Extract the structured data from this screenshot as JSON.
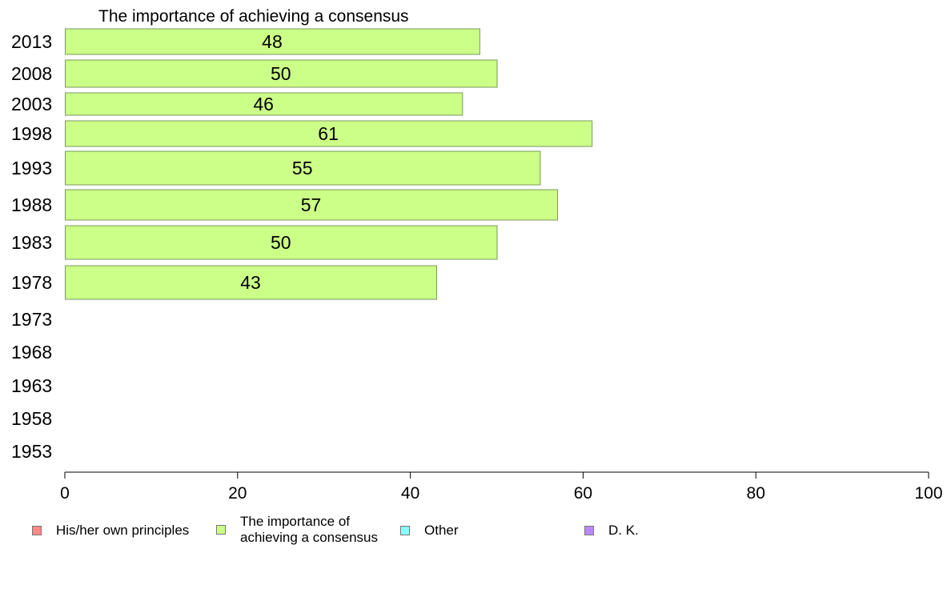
{
  "chart_data": {
    "type": "bar",
    "orientation": "horizontal",
    "title": "The importance of achieving a consensus",
    "categories": [
      "2013",
      "2008",
      "2003",
      "1998",
      "1993",
      "1988",
      "1983",
      "1978",
      "1973",
      "1968",
      "1963",
      "1958",
      "1953"
    ],
    "series": [
      {
        "name": "The importance of achieving a consensus",
        "color": "#ccff88",
        "values": [
          48,
          50,
          46,
          61,
          55,
          57,
          50,
          43,
          null,
          null,
          null,
          null,
          null
        ],
        "labels": [
          "48",
          "50",
          "46",
          "61",
          "55",
          "57",
          "50",
          "43",
          "",
          "",
          "",
          "",
          ""
        ]
      }
    ],
    "xlim": [
      0,
      100
    ],
    "xticks": [
      "0",
      "20",
      "40",
      "60",
      "80",
      "100"
    ],
    "grid": false,
    "legend_position": "bottom"
  },
  "legend": [
    {
      "label": "His/her own principles",
      "color": "#ff8888"
    },
    {
      "label": "The importance of\nachieving a consensus",
      "color": "#ccff88"
    },
    {
      "label": "Other",
      "color": "#88ffff"
    },
    {
      "label": "D. K.",
      "color": "#bb88ff"
    }
  ]
}
